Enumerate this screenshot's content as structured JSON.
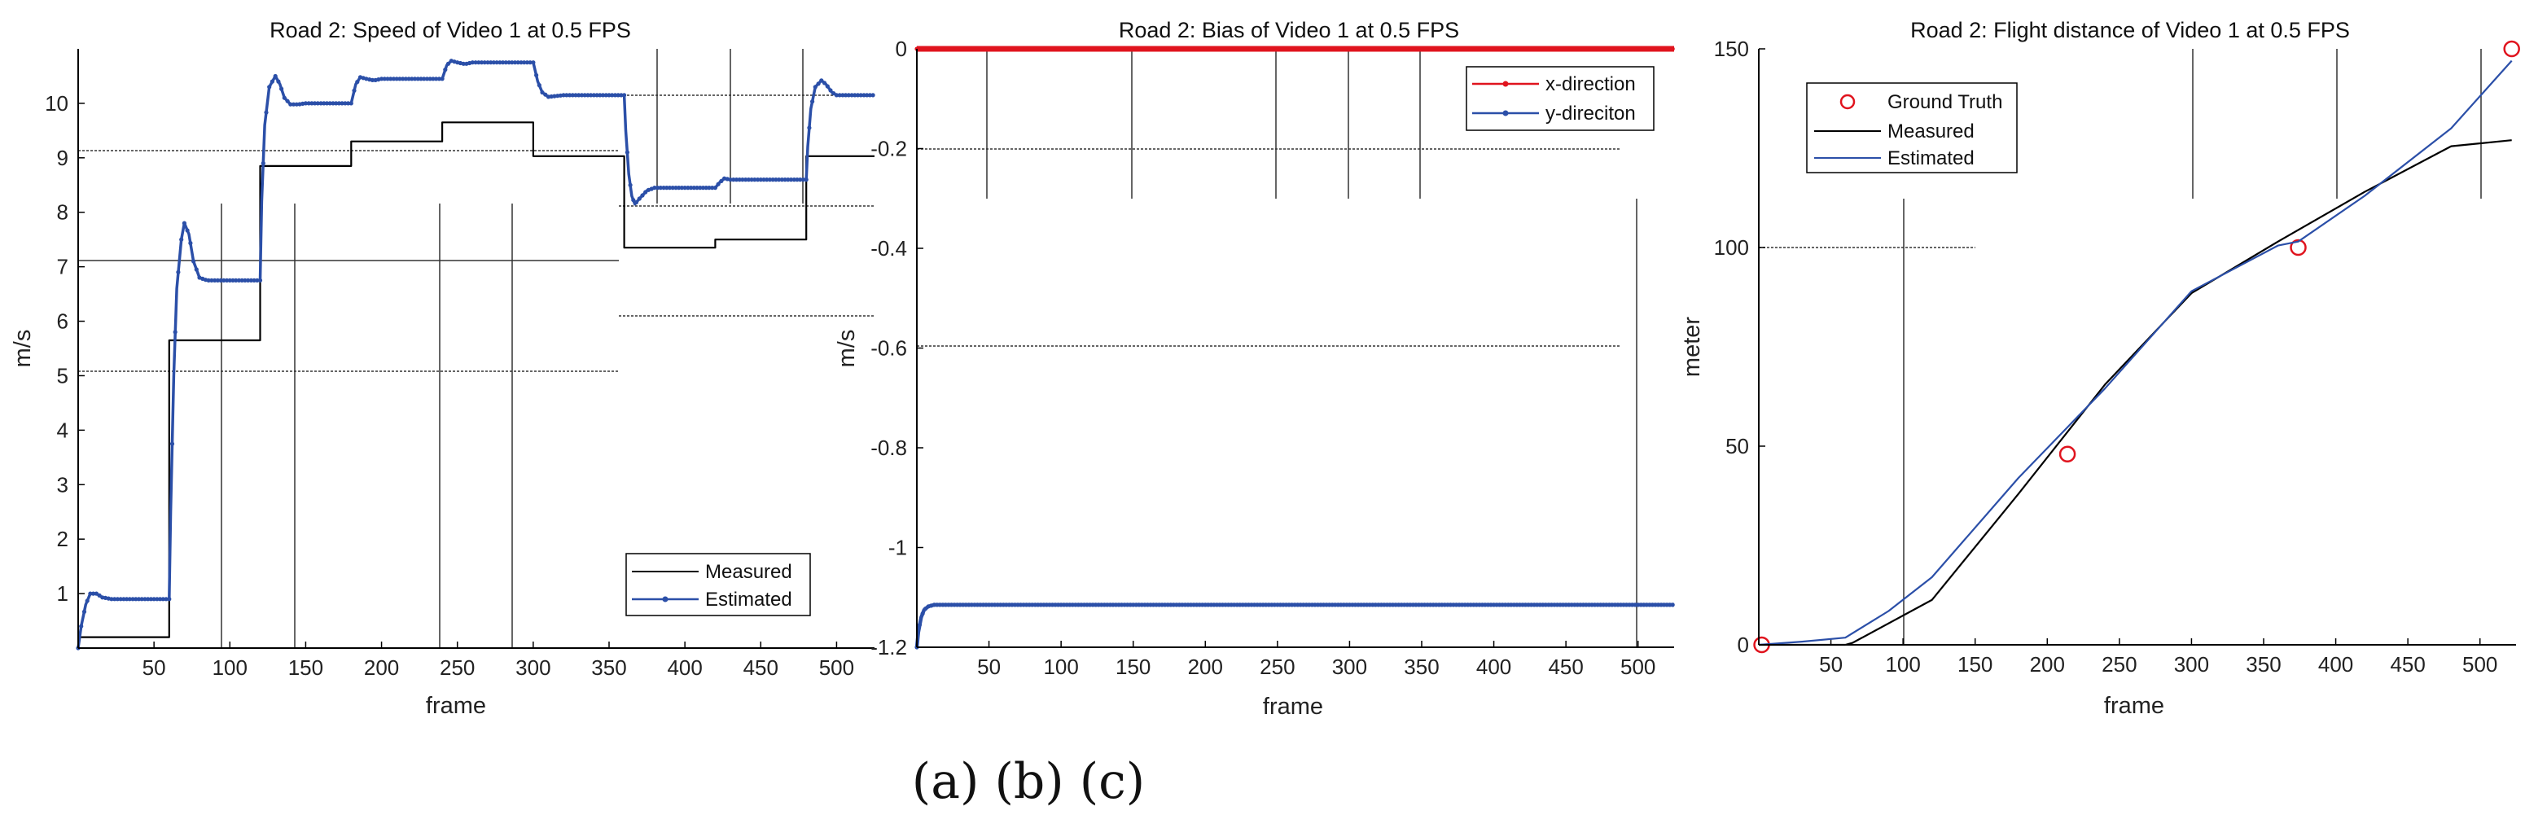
{
  "caption": "(a) (b) (c)",
  "colors": {
    "measured": "#000000",
    "estimated": "#2b4fa8",
    "x_direction": "#e0141e",
    "ground_truth": "#e0141e",
    "ref_lines": "#333333"
  },
  "chart_data": [
    {
      "type": "line",
      "title": "Road 2: Speed of Video 1 at 0.5 FPS",
      "xlabel": "frame",
      "ylabel": "m/s",
      "xlim": [
        0,
        525
      ],
      "ylim": [
        0,
        11
      ],
      "xticks": [
        50,
        100,
        150,
        200,
        250,
        300,
        350,
        400,
        450,
        500
      ],
      "yticks": [
        1,
        2,
        3,
        4,
        5,
        6,
        7,
        8,
        9,
        10
      ],
      "legend": "bottom-right",
      "series": [
        {
          "name": "Measured",
          "style": "step",
          "x": [
            0,
            60,
            60,
            120,
            120,
            180,
            180,
            240,
            240,
            300,
            300,
            360,
            360,
            420,
            420,
            480,
            480,
            525
          ],
          "y": [
            0.2,
            0.2,
            5.65,
            5.65,
            8.85,
            8.85,
            9.3,
            9.3,
            9.65,
            9.65,
            9.03,
            9.03,
            7.35,
            7.35,
            7.5,
            7.5,
            9.03,
            9.03
          ]
        },
        {
          "name": "Estimated",
          "style": "line-markers",
          "x": [
            0,
            2,
            5,
            8,
            12,
            16,
            22,
            30,
            60,
            61,
            63,
            65,
            68,
            70,
            73,
            76,
            80,
            85,
            90,
            120,
            121,
            123,
            126,
            130,
            133,
            136,
            140,
            145,
            150,
            180,
            183,
            186,
            190,
            195,
            200,
            240,
            243,
            246,
            250,
            255,
            260,
            300,
            303,
            306,
            310,
            320,
            360,
            361,
            363,
            365,
            367,
            370,
            375,
            380,
            385,
            390,
            420,
            423,
            426,
            430,
            440,
            480,
            481,
            483,
            486,
            490,
            493,
            497,
            500,
            505,
            510,
            525
          ],
          "y": [
            0,
            0.4,
            0.8,
            1.0,
            1.0,
            0.93,
            0.9,
            0.9,
            0.9,
            2.5,
            5.0,
            6.6,
            7.5,
            7.8,
            7.6,
            7.1,
            6.8,
            6.75,
            6.75,
            6.75,
            8.2,
            9.6,
            10.3,
            10.5,
            10.35,
            10.1,
            9.98,
            9.98,
            10.0,
            10.0,
            10.35,
            10.48,
            10.45,
            10.42,
            10.45,
            10.45,
            10.7,
            10.78,
            10.75,
            10.72,
            10.75,
            10.75,
            10.4,
            10.2,
            10.12,
            10.15,
            10.15,
            9.5,
            8.7,
            8.3,
            8.15,
            8.25,
            8.4,
            8.45,
            8.45,
            8.45,
            8.45,
            8.55,
            8.62,
            8.6,
            8.6,
            8.6,
            9.2,
            9.9,
            10.3,
            10.42,
            10.35,
            10.2,
            10.15,
            10.15,
            10.15,
            10.15
          ]
        }
      ]
    },
    {
      "type": "line",
      "title": "Road 2: Bias of Video 1 at 0.5 FPS",
      "xlabel": "frame",
      "ylabel": "m/s",
      "xlim": [
        0,
        525
      ],
      "ylim": [
        -1.2,
        0
      ],
      "xticks": [
        50,
        100,
        150,
        200,
        250,
        300,
        350,
        400,
        450,
        500
      ],
      "yticks": [
        0,
        -0.2,
        -0.4,
        -0.6,
        -0.8,
        -1,
        -1.2
      ],
      "legend": "top-right",
      "series": [
        {
          "name": "x-direction",
          "style": "line-markers",
          "x": [
            0,
            525
          ],
          "y": [
            0,
            0
          ]
        },
        {
          "name": "y-direciton",
          "style": "line-markers",
          "x": [
            0,
            1,
            3,
            5,
            8,
            12,
            20,
            525
          ],
          "y": [
            -1.2,
            -1.17,
            -1.14,
            -1.125,
            -1.118,
            -1.115,
            -1.115,
            -1.115
          ]
        }
      ]
    },
    {
      "type": "line",
      "title": "Road 2: Flight distance of Video 1 at 0.5 FPS",
      "xlabel": "frame",
      "ylabel": "meter",
      "xlim": [
        0,
        525
      ],
      "ylim": [
        0,
        150
      ],
      "xticks": [
        50,
        100,
        150,
        200,
        250,
        300,
        350,
        400,
        450,
        500
      ],
      "yticks": [
        0,
        50,
        100,
        150
      ],
      "legend": "top-left",
      "series": [
        {
          "name": "Ground Truth",
          "style": "circles",
          "x": [
            2,
            214,
            374,
            522
          ],
          "y": [
            0,
            48,
            100,
            150
          ]
        },
        {
          "name": "Measured",
          "style": "line",
          "x": [
            0,
            60,
            65,
            120,
            180,
            240,
            300,
            360,
            420,
            480,
            522
          ],
          "y": [
            0,
            0,
            0.5,
            11.3,
            38,
            65.5,
            88.5,
            101.5,
            114,
            125.5,
            127
          ]
        },
        {
          "name": "Estimated",
          "style": "line",
          "x": [
            0,
            30,
            60,
            90,
            120,
            180,
            240,
            300,
            360,
            374,
            420,
            480,
            522
          ],
          "y": [
            0,
            0.8,
            1.8,
            8.5,
            17,
            42,
            64.5,
            89,
            100.5,
            101.5,
            113,
            130,
            147
          ]
        }
      ]
    }
  ]
}
